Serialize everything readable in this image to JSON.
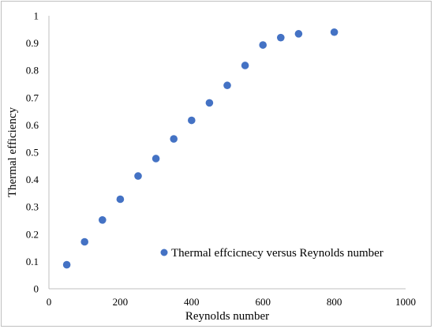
{
  "chart_data": {
    "type": "scatter",
    "title": "",
    "xlabel": "Reynolds number",
    "ylabel": "Thermal efficiency",
    "xlim": [
      0,
      1000
    ],
    "ylim": [
      0,
      1
    ],
    "x_ticks": [
      "0",
      "200",
      "400",
      "600",
      "800",
      "1000"
    ],
    "y_ticks": [
      "0",
      "0.1",
      "0.2",
      "0.3",
      "0.4",
      "0.5",
      "0.6",
      "0.7",
      "0.8",
      "0.9",
      "1"
    ],
    "grid": false,
    "legend_position": "bottom-right inside",
    "series": [
      {
        "name": "Thermal effcicnecy versus Reynolds number",
        "color": "#4472c4",
        "marker": "circle",
        "points": [
          {
            "x": 50,
            "y": 0.088
          },
          {
            "x": 100,
            "y": 0.172
          },
          {
            "x": 150,
            "y": 0.252
          },
          {
            "x": 200,
            "y": 0.328
          },
          {
            "x": 250,
            "y": 0.413
          },
          {
            "x": 300,
            "y": 0.477
          },
          {
            "x": 350,
            "y": 0.549
          },
          {
            "x": 400,
            "y": 0.617
          },
          {
            "x": 450,
            "y": 0.681
          },
          {
            "x": 500,
            "y": 0.745
          },
          {
            "x": 550,
            "y": 0.818
          },
          {
            "x": 600,
            "y": 0.893
          },
          {
            "x": 650,
            "y": 0.92
          },
          {
            "x": 700,
            "y": 0.934
          },
          {
            "x": 800,
            "y": 0.94
          }
        ]
      }
    ]
  }
}
